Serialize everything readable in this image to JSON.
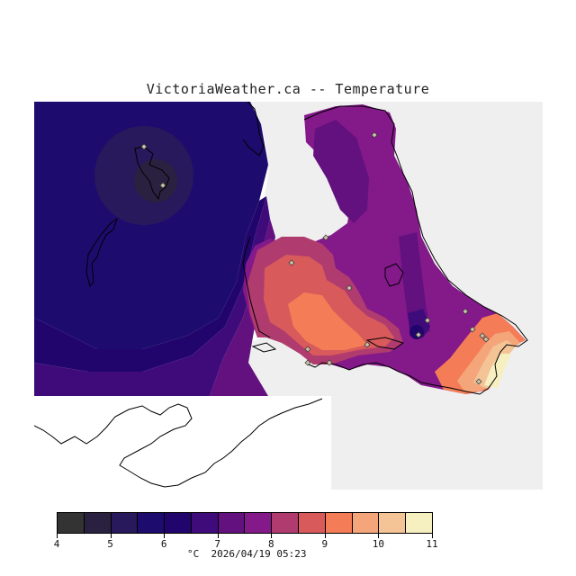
{
  "title": "VictoriaWeather.ca -- Temperature",
  "map": {
    "fill_region": "temperature-field",
    "colors": {
      "land_unsampled": "#efefef",
      "coastline": "#000000",
      "station_marker": "#c8c0a8"
    },
    "stations_count_visible": 17
  },
  "legend": {
    "tick_labels": [
      "4",
      "5",
      "6",
      "7",
      "8",
      "9",
      "10",
      "11"
    ],
    "colors": [
      "#333333",
      "#2a2140",
      "#28185c",
      "#1e0b6e",
      "#22056c",
      "#3f0b7a",
      "#62117f",
      "#84198a",
      "#b03b6f",
      "#d85a5b",
      "#f47d57",
      "#f5a57a",
      "#f4c497",
      "#f6f0c0"
    ]
  },
  "footer": {
    "unit": "°C",
    "timestamp": "2026/04/19 05:23"
  }
}
